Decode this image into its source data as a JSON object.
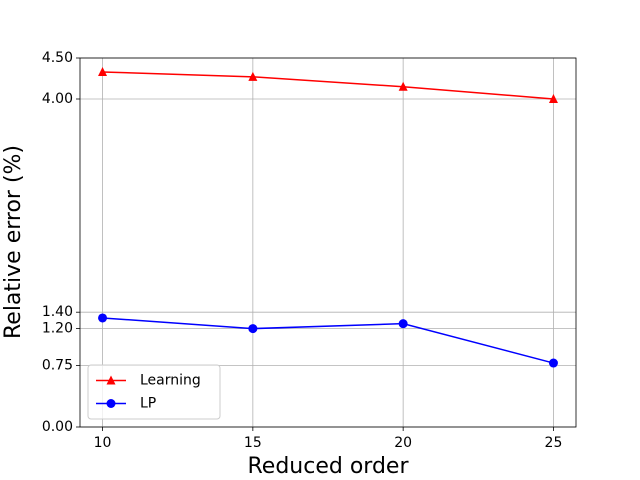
{
  "chart_data": {
    "type": "line",
    "x_label": "Reduced order",
    "y_label": "Relative error (%)",
    "x": [
      10,
      15,
      20,
      25
    ],
    "series": [
      {
        "name": "Learning",
        "color": "#ff0000",
        "marker": "triangle",
        "values": [
          4.33,
          4.27,
          4.15,
          4.0
        ]
      },
      {
        "name": "LP",
        "color": "#0000ff",
        "marker": "circle",
        "values": [
          1.33,
          1.2,
          1.26,
          0.78
        ]
      }
    ],
    "xlim": [
      9.25,
      25.75
    ],
    "ylim": [
      0,
      4.5
    ],
    "xticks": [
      10,
      15,
      20,
      25
    ],
    "yticks": [
      {
        "value": 0,
        "label": "0.00"
      },
      {
        "value": 0.75,
        "label": "0.75"
      },
      {
        "value": 1.2,
        "label": "1.20"
      },
      {
        "value": 1.4,
        "label": "1.40"
      },
      {
        "value": 4,
        "label": "4.00"
      },
      {
        "value": 4.5,
        "label": "4.50"
      }
    ],
    "grid": true,
    "legend_position": "lower left"
  }
}
